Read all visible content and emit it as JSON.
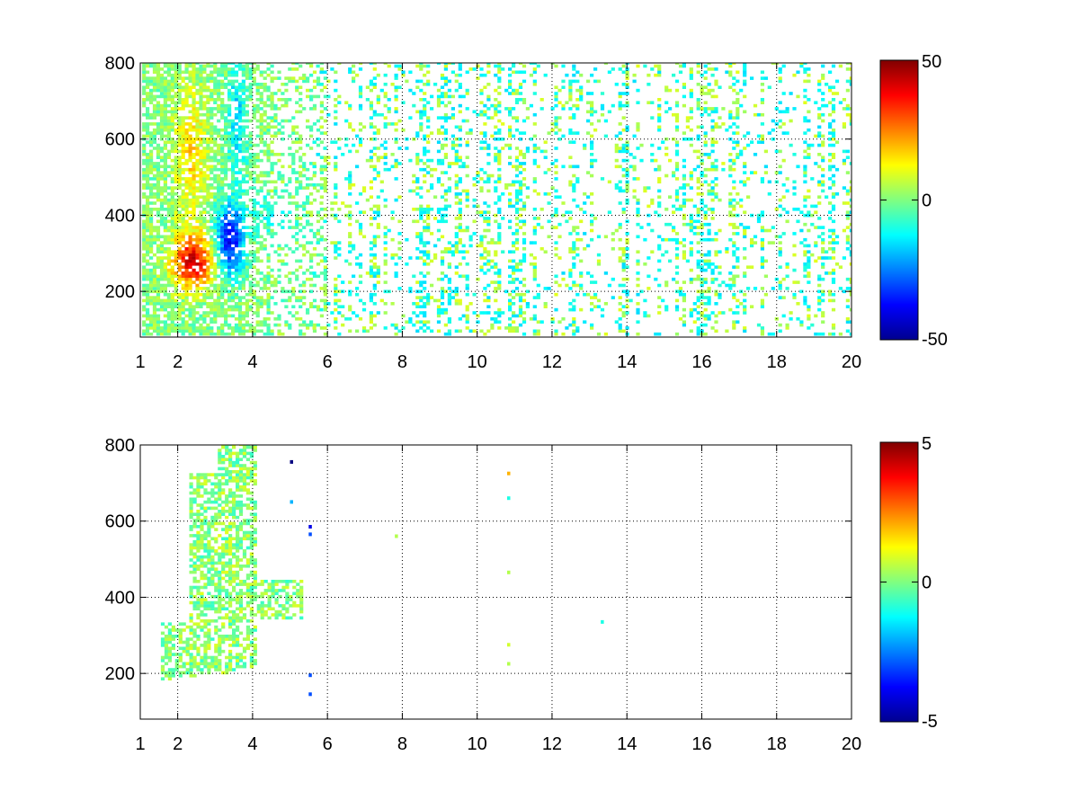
{
  "chart_data": [
    {
      "type": "heatmap",
      "title": "",
      "xlabel": "",
      "ylabel": "",
      "xlim": [
        1,
        20
      ],
      "ylim": [
        80,
        800
      ],
      "xticks": [
        1,
        2,
        4,
        6,
        8,
        10,
        12,
        14,
        16,
        18,
        20
      ],
      "yticks": [
        200,
        400,
        600,
        800
      ],
      "grid": true,
      "colorbar": {
        "colormap": "jet",
        "min": -50,
        "max": 50,
        "ticks": [
          -50,
          0,
          50
        ],
        "position": "right"
      },
      "features": [
        {
          "region": "ridge",
          "x_range": [
            1.6,
            3.6
          ],
          "y_range": [
            220,
            420
          ],
          "value": 40
        },
        {
          "region": "warm band",
          "x_range": [
            2.0,
            3.4
          ],
          "y_range": [
            420,
            700
          ],
          "value": 18
        },
        {
          "region": "trough",
          "x_range": [
            2.6,
            4.0
          ],
          "y_range": [
            240,
            800
          ],
          "value": -38
        },
        {
          "region": "tail",
          "x_range": [
            4.0,
            5.8
          ],
          "y_range": [
            340,
            460
          ],
          "value": -12
        },
        {
          "region": "scattered noise",
          "x_range": [
            5.5,
            20
          ],
          "y_range": [
            80,
            800
          ],
          "value_range": [
            -15,
            10
          ]
        }
      ]
    },
    {
      "type": "heatmap",
      "title": "",
      "xlabel": "",
      "ylabel": "",
      "xlim": [
        1,
        20
      ],
      "ylim": [
        80,
        800
      ],
      "xticks": [
        1,
        2,
        4,
        6,
        8,
        10,
        12,
        14,
        16,
        18,
        20
      ],
      "yticks": [
        200,
        400,
        600,
        800
      ],
      "grid": true,
      "colorbar": {
        "colormap": "jet",
        "min": -5,
        "max": 5,
        "ticks": [
          -5,
          0,
          5
        ],
        "position": "right"
      },
      "features": [
        {
          "region": "main cluster",
          "x_range": [
            1.6,
            4.0
          ],
          "y_range": [
            180,
            800
          ],
          "value_range": [
            -1,
            1
          ]
        },
        {
          "region": "tail",
          "x_range": [
            4.0,
            5.2
          ],
          "y_range": [
            340,
            440
          ],
          "value": 0.7
        },
        {
          "points": [
            {
              "x": 5.0,
              "y": 760,
              "value": -5
            },
            {
              "x": 5.0,
              "y": 655,
              "value": -2
            },
            {
              "x": 5.5,
              "y": 590,
              "value": -4
            },
            {
              "x": 5.5,
              "y": 570,
              "value": -3
            },
            {
              "x": 5.5,
              "y": 200,
              "value": -3
            },
            {
              "x": 5.5,
              "y": 150,
              "value": -3
            },
            {
              "x": 10.8,
              "y": 730,
              "value": 2
            },
            {
              "x": 10.8,
              "y": 665,
              "value": -1
            },
            {
              "x": 10.8,
              "y": 470,
              "value": 0.5
            },
            {
              "x": 10.8,
              "y": 280,
              "value": 0.8
            },
            {
              "x": 10.8,
              "y": 230,
              "value": 0.5
            },
            {
              "x": 13.3,
              "y": 340,
              "value": -1
            },
            {
              "x": 7.8,
              "y": 565,
              "value": 0.5
            }
          ]
        }
      ]
    }
  ]
}
